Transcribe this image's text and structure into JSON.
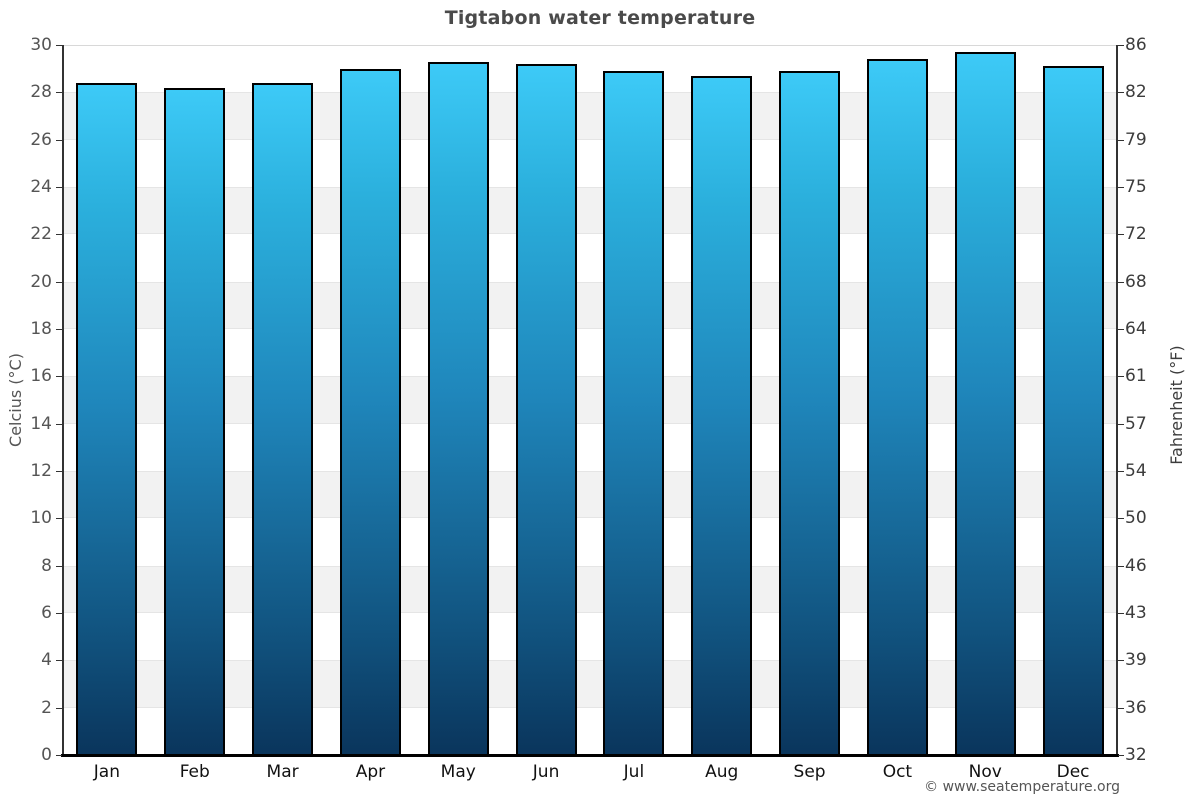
{
  "page": {
    "title": "Tigtabon water temperature",
    "copyright": "© www.seatemperature.org"
  },
  "chart_data": {
    "type": "bar",
    "title": "Tigtabon water temperature",
    "categories": [
      "Jan",
      "Feb",
      "Mar",
      "Apr",
      "May",
      "Jun",
      "Jul",
      "Aug",
      "Sep",
      "Oct",
      "Nov",
      "Dec"
    ],
    "series": [
      {
        "name": "Water temperature",
        "unit": "°C",
        "values": [
          28.4,
          28.2,
          28.4,
          29.0,
          29.3,
          29.2,
          28.9,
          28.7,
          28.9,
          29.4,
          29.7,
          29.1
        ]
      }
    ],
    "xlabel": "",
    "ylabel_left": "Celcius (°C)",
    "ylabel_right": "Fahrenheit (°F)",
    "ylim_left": [
      0,
      30
    ],
    "left_tick_step": 2,
    "left_ticks": [
      0,
      2,
      4,
      6,
      8,
      10,
      12,
      14,
      16,
      18,
      20,
      22,
      24,
      26,
      28,
      30
    ],
    "right_tick_labels_top_to_bottom": [
      "86",
      "82",
      "79",
      "75",
      "72",
      "68",
      "64",
      "61",
      "57",
      "54",
      "50",
      "46",
      "43",
      "39",
      "36",
      "32"
    ],
    "grid": "alternating light-gray horizontal bands every 2°C",
    "legend_position": "none",
    "colors": {
      "bar_gradient_top": "#3dcaf7",
      "bar_gradient_bottom": "#0a355c",
      "bar_border": "#000000",
      "band_fill": "#f2f2f2",
      "axis_line": "#333333",
      "title_text": "#4a4a4a",
      "tick_text": "#555555",
      "month_text": "#111111"
    }
  }
}
